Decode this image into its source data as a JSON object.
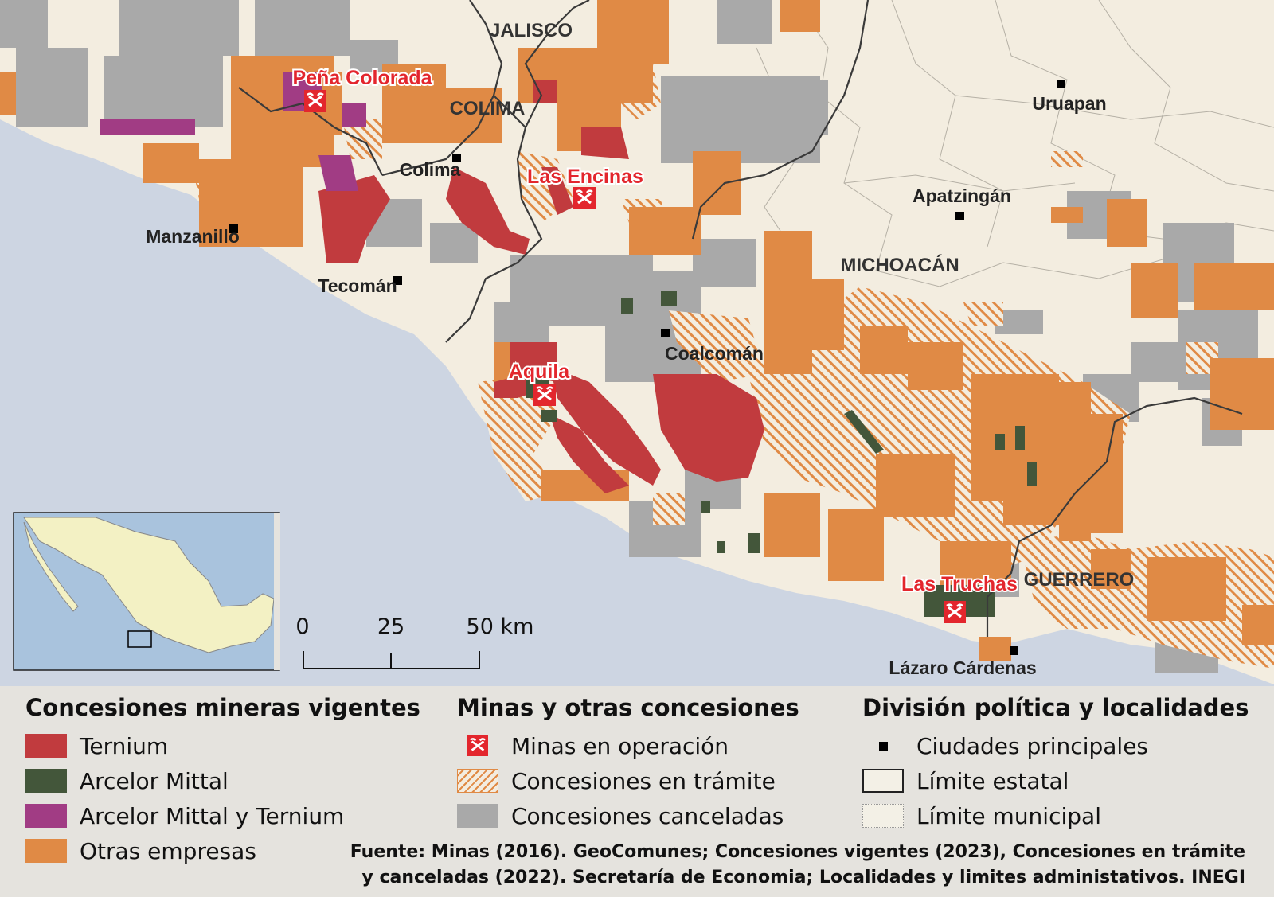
{
  "map": {
    "states": [
      "JALISCO",
      "COLIMA",
      "MICHOACÁN",
      "GUERRERO"
    ],
    "cities": [
      "Uruapan",
      "Colima",
      "Apatzingán",
      "Manzanillo",
      "Tecomán",
      "Coalcomán",
      "Lázaro Cárdenas"
    ],
    "mines": [
      "Peña Colorada",
      "Las Encinas",
      "Aquila",
      "Las Truchas"
    ],
    "scale_bar": {
      "ticks": [
        "0",
        "25",
        "50 km"
      ]
    },
    "colors": {
      "land": "#f3ede0",
      "sea": "#cdd5e2",
      "ternium": "#c13b3e",
      "arcelor": "#43563a",
      "arcelor_ternium": "#a13c84",
      "otras": "#e08a45",
      "canceladas": "#a9a9a9",
      "mine_red": "#e3262d"
    }
  },
  "legend": {
    "vigentes": {
      "title": "Concesiones mineras vigentes",
      "items": [
        "Ternium",
        "Arcelor Mittal",
        "Arcelor Mittal y Ternium",
        "Otras empresas"
      ]
    },
    "minas": {
      "title": "Minas y otras concesiones",
      "items": [
        "Minas en operación",
        "Concesiones en trámite",
        "Concesiones canceladas"
      ]
    },
    "division": {
      "title": "División política y localidades",
      "items": [
        "Ciudades principales",
        "Límite estatal",
        "Límite municipal"
      ]
    }
  },
  "source": {
    "line1": "Fuente: Minas (2016). GeoComunes; Concesiones vigentes (2023), Concesiones en trámite",
    "line2": "y canceladas (2022). Secretaría de Economia; Localidades y limites administativos. INEGI"
  }
}
